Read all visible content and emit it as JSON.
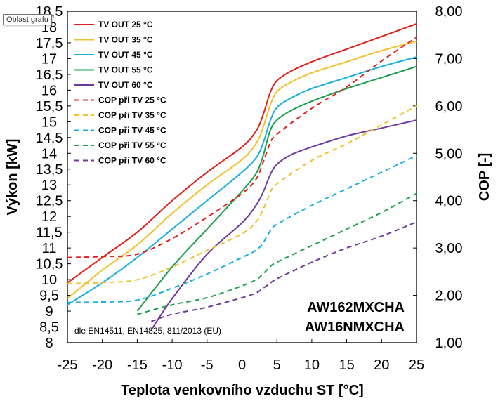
{
  "tooltip": "Oblast grafu",
  "chart_data": {
    "type": "line",
    "xlabel": "Teplota venkovního vzduchu ST [°C]",
    "ylabel": "Výkon [kW]",
    "y2label": "COP [-]",
    "xlim": [
      -25,
      25
    ],
    "ylim": [
      8,
      18.5
    ],
    "y2lim": [
      1,
      8
    ],
    "x_ticks": [
      "-25",
      "-20",
      "-15",
      "-10",
      "-5",
      "0",
      "5",
      "10",
      "15",
      "20",
      "25"
    ],
    "y_ticks": [
      "8",
      "8,5",
      "9",
      "9,5",
      "10",
      "10,5",
      "11",
      "11,5",
      "12",
      "12,5",
      "13",
      "13,5",
      "14",
      "14,5",
      "15",
      "15,5",
      "16",
      "16,5",
      "17",
      "17,5",
      "18",
      "18,5"
    ],
    "y2_ticks": [
      "1,00",
      "2,00",
      "3,00",
      "4,00",
      "5,00",
      "6,00",
      "7,00",
      "8,00"
    ],
    "grid": false,
    "legend_position": "top-left",
    "annotations": [
      "AW162MXCHA",
      "AW16NMXCHA",
      "dle EN14511, EN14825, 811/2013 (EU)"
    ],
    "series": [
      {
        "name": "TV OUT 25 °C",
        "axis": "left",
        "style": "solid",
        "color": "#e0201b",
        "x": [
          -25,
          -20,
          -15,
          -10,
          -5,
          0,
          2,
          3,
          4,
          5,
          7,
          10,
          15,
          20,
          25
        ],
        "y": [
          9.9,
          10.7,
          11.5,
          12.5,
          13.4,
          14.2,
          14.7,
          15.2,
          15.9,
          16.3,
          16.6,
          16.9,
          17.3,
          17.7,
          18.1
        ]
      },
      {
        "name": "TV OUT 35 °C",
        "axis": "left",
        "style": "solid",
        "color": "#f2c12e",
        "x": [
          -25,
          -20,
          -15,
          -10,
          -5,
          0,
          2,
          3,
          4,
          5,
          7,
          10,
          15,
          20,
          25
        ],
        "y": [
          9.4,
          10.3,
          11.1,
          12.1,
          13.0,
          13.8,
          14.3,
          14.8,
          15.5,
          15.95,
          16.25,
          16.55,
          16.9,
          17.25,
          17.55
        ]
      },
      {
        "name": "TV OUT 45 °C",
        "axis": "left",
        "style": "solid",
        "color": "#1aaee0",
        "x": [
          -25,
          -20,
          -15,
          -10,
          -5,
          0,
          2,
          3,
          4,
          5,
          7,
          10,
          15,
          20,
          25
        ],
        "y": [
          9.2,
          9.9,
          10.7,
          11.6,
          12.5,
          13.4,
          13.85,
          14.3,
          15.0,
          15.45,
          15.75,
          16.05,
          16.4,
          16.75,
          17.05
        ]
      },
      {
        "name": "TV OUT 55 °C",
        "axis": "left",
        "style": "solid",
        "color": "#1e9f4c",
        "x": [
          -15,
          -10,
          -5,
          0,
          2,
          3,
          4,
          5,
          7,
          10,
          15,
          20,
          25
        ],
        "y": [
          9.0,
          10.4,
          11.6,
          12.8,
          13.35,
          13.9,
          14.7,
          15.05,
          15.35,
          15.65,
          16.05,
          16.4,
          16.75
        ]
      },
      {
        "name": "TV OUT 60 °C",
        "axis": "left",
        "style": "solid",
        "color": "#6e3b9c",
        "x": [
          -13,
          -10,
          -5,
          0,
          2,
          3,
          4,
          5,
          7,
          10,
          15,
          20,
          25
        ],
        "y": [
          8.4,
          9.4,
          10.8,
          11.8,
          12.35,
          12.75,
          13.3,
          13.65,
          13.95,
          14.2,
          14.55,
          14.8,
          15.05
        ]
      },
      {
        "name": "COP při TV 25 °C",
        "axis": "right",
        "style": "dashed",
        "color": "#e0201b",
        "x": [
          -25,
          -20,
          -15,
          -10,
          -5,
          0,
          2,
          3,
          4,
          5,
          10,
          15,
          20,
          25
        ],
        "y": [
          2.8,
          2.82,
          2.87,
          3.2,
          3.65,
          4.15,
          4.45,
          4.8,
          5.2,
          5.4,
          5.95,
          6.4,
          6.95,
          7.45
        ]
      },
      {
        "name": "COP při TV 35 °C",
        "axis": "right",
        "style": "dashed",
        "color": "#f2c12e",
        "x": [
          -25,
          -20,
          -15,
          -10,
          -5,
          0,
          2,
          3,
          4,
          5,
          10,
          15,
          20,
          25
        ],
        "y": [
          2.25,
          2.27,
          2.33,
          2.6,
          2.95,
          3.3,
          3.55,
          3.8,
          4.15,
          4.35,
          4.85,
          5.2,
          5.6,
          6.0
        ]
      },
      {
        "name": "COP při TV 45 °C",
        "axis": "right",
        "style": "dashed",
        "color": "#1aaee0",
        "x": [
          -25,
          -20,
          -15,
          -10,
          -5,
          0,
          2,
          3,
          4,
          5,
          10,
          15,
          20,
          25
        ],
        "y": [
          1.85,
          1.86,
          1.9,
          2.15,
          2.45,
          2.8,
          2.95,
          3.1,
          3.35,
          3.5,
          3.9,
          4.25,
          4.6,
          4.95
        ]
      },
      {
        "name": "COP při TV 55 °C",
        "axis": "right",
        "style": "dashed",
        "color": "#1e9f4c",
        "x": [
          -15,
          -10,
          -5,
          0,
          2,
          3,
          4,
          5,
          10,
          15,
          20,
          25
        ],
        "y": [
          1.6,
          1.8,
          1.95,
          2.2,
          2.33,
          2.45,
          2.6,
          2.7,
          3.05,
          3.4,
          3.75,
          4.15
        ]
      },
      {
        "name": "COP při TV 60 °C",
        "axis": "right",
        "style": "dashed",
        "color": "#6e3b9c",
        "x": [
          -13,
          -10,
          -5,
          0,
          2,
          3,
          4,
          5,
          10,
          15,
          20,
          25
        ],
        "y": [
          1.45,
          1.6,
          1.75,
          1.95,
          2.05,
          2.15,
          2.25,
          2.35,
          2.7,
          3.0,
          3.25,
          3.55
        ]
      }
    ]
  }
}
